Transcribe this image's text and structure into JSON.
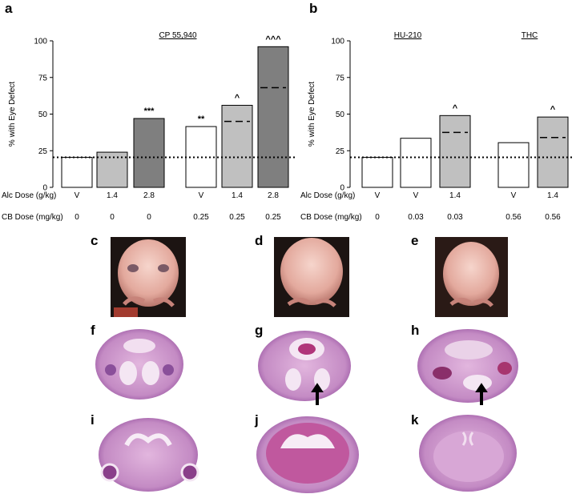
{
  "panels": [
    {
      "letter": "a"
    },
    {
      "letter": "b"
    },
    {
      "letter": "c"
    },
    {
      "letter": "d"
    },
    {
      "letter": "e"
    },
    {
      "letter": "f"
    },
    {
      "letter": "g"
    },
    {
      "letter": "h"
    },
    {
      "letter": "i"
    },
    {
      "letter": "j"
    },
    {
      "letter": "k"
    }
  ],
  "row_labels": {
    "alc": "Alc Dose (g/kg)",
    "cb": "CB Dose (mg/kg)"
  },
  "chart_data": [
    {
      "panel": "a",
      "type": "bar",
      "ylabel": "% with Eye Defect",
      "ylim": [
        0,
        100
      ],
      "yticks": [
        0,
        25,
        50,
        75,
        100
      ],
      "reference_line": 20.5,
      "group_labels": [
        {
          "text": "CP 55,940",
          "over": [
            3,
            5
          ]
        }
      ],
      "bars": [
        {
          "alc": "V",
          "cb": "0",
          "value": 20.5,
          "fill": "#ffffff",
          "sig": "",
          "dashed": null
        },
        {
          "alc": "1.4",
          "cb": "0",
          "value": 24,
          "fill": "#c0c0c0",
          "sig": "",
          "dashed": null
        },
        {
          "alc": "2.8",
          "cb": "0",
          "value": 47,
          "fill": "#7f7f7f",
          "sig": "***",
          "dashed": null
        },
        {
          "alc": "V",
          "cb": "0.25",
          "value": 41.5,
          "fill": "#ffffff",
          "sig": "**",
          "dashed": null
        },
        {
          "alc": "1.4",
          "cb": "0.25",
          "value": 56,
          "fill": "#c0c0c0",
          "sig": "^",
          "dashed": 45
        },
        {
          "alc": "2.8",
          "cb": "0.25",
          "value": 96,
          "fill": "#7f7f7f",
          "sig": "^^^",
          "dashed": 68
        }
      ]
    },
    {
      "panel": "b",
      "type": "bar",
      "ylabel": "% with Eye Defect",
      "ylim": [
        0,
        100
      ],
      "yticks": [
        0,
        25,
        50,
        75,
        100
      ],
      "reference_line": 20.5,
      "group_labels": [
        {
          "text": "HU-210",
          "over": [
            1,
            2
          ]
        },
        {
          "text": "THC",
          "over": [
            3,
            4
          ]
        }
      ],
      "bars": [
        {
          "alc": "V",
          "cb": "0",
          "value": 20.5,
          "fill": "#ffffff",
          "sig": "",
          "dashed": null
        },
        {
          "alc": "V",
          "cb": "0.03",
          "value": 33.5,
          "fill": "#ffffff",
          "sig": "",
          "dashed": null
        },
        {
          "alc": "1.4",
          "cb": "0.03",
          "value": 49,
          "fill": "#c0c0c0",
          "sig": "^",
          "dashed": 37.5
        },
        {
          "alc": "V",
          "cb": "0.56",
          "value": 30.5,
          "fill": "#ffffff",
          "sig": "",
          "dashed": null
        },
        {
          "alc": "1.4",
          "cb": "0.56",
          "value": 48,
          "fill": "#c0c0c0",
          "sig": "^",
          "dashed": 34
        }
      ]
    }
  ],
  "colors": {
    "background": "#ffffff",
    "photo_bg": "#1c1412",
    "embryo_skin": "#e9b8ad",
    "section_pink": "#c98fc8",
    "section_purple": "#8a4f9a"
  }
}
